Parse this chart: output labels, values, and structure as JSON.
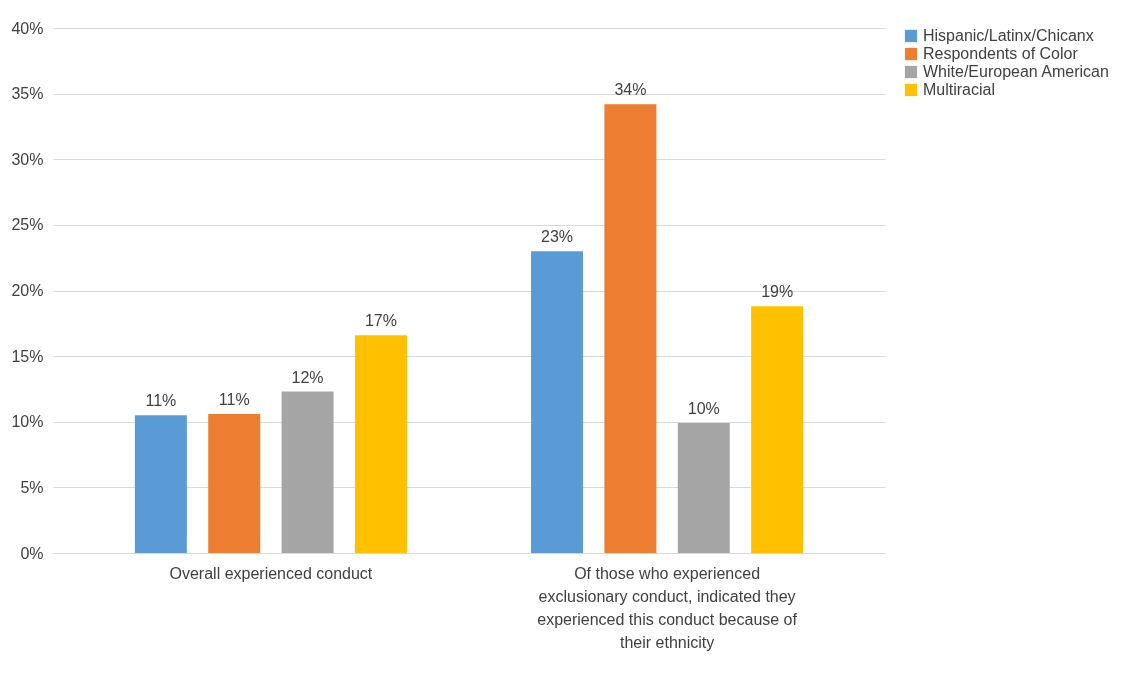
{
  "chart_data": {
    "type": "bar",
    "categories": [
      "Overall experienced conduct",
      "Of those who experienced exclusionary conduct, indicated they experienced this conduct because of their ethnicity"
    ],
    "series": [
      {
        "name": "Hispanic/Latinx/Chicanx",
        "color": "#5b9bd5",
        "values": [
          10.5,
          23.0
        ],
        "value_labels": [
          "11%",
          "23%"
        ]
      },
      {
        "name": "Respondents of Color",
        "color": "#ed7d31",
        "values": [
          10.6,
          34.2
        ],
        "value_labels": [
          "11%",
          "34%"
        ]
      },
      {
        "name": "White/European American",
        "color": "#a5a5a5",
        "values": [
          12.3,
          9.9
        ],
        "value_labels": [
          "12%",
          "10%"
        ]
      },
      {
        "name": "Multiracial",
        "color": "#ffc000",
        "values": [
          16.6,
          18.8
        ],
        "value_labels": [
          "17%",
          "19%"
        ]
      }
    ],
    "ylim": [
      0,
      40
    ],
    "yticks": [
      {
        "value": 0,
        "label": "0%"
      },
      {
        "value": 5,
        "label": "5%"
      },
      {
        "value": 10,
        "label": "10%"
      },
      {
        "value": 15,
        "label": "15%"
      },
      {
        "value": 20,
        "label": "20%"
      },
      {
        "value": 25,
        "label": "25%"
      },
      {
        "value": 30,
        "label": "30%"
      },
      {
        "value": 35,
        "label": "35%"
      },
      {
        "value": 40,
        "label": "40%"
      }
    ],
    "grid": "y",
    "legend": "right"
  }
}
